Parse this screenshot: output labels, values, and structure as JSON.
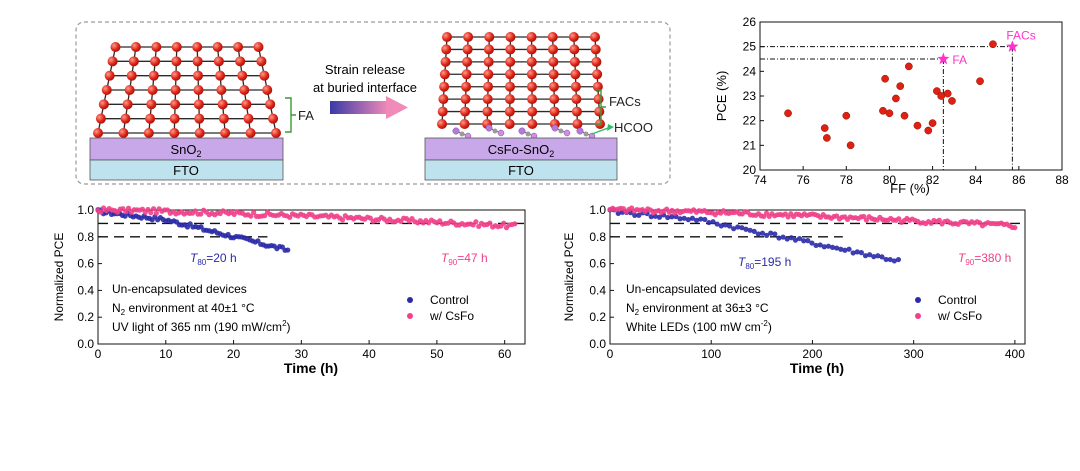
{
  "schematic": {
    "left": {
      "layer_label": "FA",
      "substrate_top_base": "SnO",
      "substrate_top_sub": "2",
      "substrate_bottom": "FTO"
    },
    "arrow_text_line1": "Strain release",
    "arrow_text_line2": "at buried interface",
    "right": {
      "layer_label": "FACs",
      "anion_label": "HCOO",
      "substrate_top_base": "CsFo-SnO",
      "substrate_top_sub": "2",
      "substrate_bottom": "FTO"
    }
  },
  "chart_data": [
    {
      "id": "scatter",
      "type": "scatter",
      "xlabel": "FF (%)",
      "ylabel": "PCE (%)",
      "xlim": [
        74,
        88
      ],
      "ylim": [
        20,
        26
      ],
      "xticks": [
        74,
        76,
        78,
        80,
        82,
        84,
        86,
        88
      ],
      "yticks": [
        20,
        21,
        22,
        23,
        24,
        25,
        26
      ],
      "points": [
        [
          75.3,
          22.3
        ],
        [
          77.0,
          21.7
        ],
        [
          77.1,
          21.3
        ],
        [
          78.0,
          22.2
        ],
        [
          78.2,
          21.0
        ],
        [
          79.7,
          22.4
        ],
        [
          79.8,
          23.7
        ],
        [
          80.0,
          22.3
        ],
        [
          80.3,
          22.9
        ],
        [
          80.5,
          23.4
        ],
        [
          80.7,
          22.2
        ],
        [
          80.9,
          24.2
        ],
        [
          81.3,
          21.8
        ],
        [
          81.8,
          21.6
        ],
        [
          82.0,
          21.9
        ],
        [
          82.2,
          23.2
        ],
        [
          82.4,
          23.0
        ],
        [
          82.7,
          23.1
        ],
        [
          82.9,
          22.8
        ],
        [
          84.2,
          23.6
        ],
        [
          84.8,
          25.1
        ]
      ],
      "stars": [
        {
          "label": "FA",
          "x": 82.5,
          "y": 24.5
        },
        {
          "label": "FACs",
          "x": 85.7,
          "y": 25.0
        }
      ],
      "colors": {
        "points": "#e02010",
        "stars": "#ff33cc"
      }
    },
    {
      "id": "stab_uv",
      "type": "scatter",
      "xlabel": "Time (h)",
      "ylabel": "Normalized PCE",
      "xlim": [
        0,
        63
      ],
      "ylim": [
        0.0,
        1.0
      ],
      "xticks": [
        0,
        10,
        20,
        30,
        40,
        50,
        60
      ],
      "yticks": [
        0.0,
        0.2,
        0.4,
        0.6,
        0.8,
        1.0
      ],
      "ytick_labels": [
        "0.0",
        "0.2",
        "0.4",
        "0.6",
        "0.8",
        "1.0"
      ],
      "ref_lines": [
        0.9,
        0.8
      ],
      "series": [
        {
          "name": "Control",
          "color": "#2a2aa8",
          "x_end": 28,
          "start": 0.99,
          "end": 0.7
        },
        {
          "name": "w/ CsFo",
          "color": "#f0408a",
          "x_end": 61.5,
          "start": 1.0,
          "end": 0.88
        }
      ],
      "annotations": [
        {
          "sym": "T",
          "sub": "80",
          "text": "=20 h",
          "color": "#2a2aa8"
        },
        {
          "sym": "T",
          "sub": "90",
          "text": "=47 h",
          "color": "#f0408a"
        }
      ],
      "info": [
        {
          "pre": "Un-encapsulated devices",
          "sub": "",
          "post": "",
          "sup": "",
          "tail": ""
        },
        {
          "pre": "N",
          "sub": "2",
          "post": " environment at 40±1 °C",
          "sup": "",
          "tail": ""
        },
        {
          "pre": "UV light of 365 nm (190 mW/cm",
          "sub": "",
          "post": "",
          "sup": "2",
          "tail": ")"
        }
      ]
    },
    {
      "id": "stab_led",
      "type": "scatter",
      "xlabel": "Time (h)",
      "ylabel": "Normalized PCE",
      "xlim": [
        0,
        410
      ],
      "ylim": [
        0.0,
        1.0
      ],
      "xticks": [
        0,
        100,
        200,
        300,
        400
      ],
      "yticks": [
        0.0,
        0.2,
        0.4,
        0.6,
        0.8,
        1.0
      ],
      "ytick_labels": [
        "0.0",
        "0.2",
        "0.4",
        "0.6",
        "0.8",
        "1.0"
      ],
      "ref_lines": [
        0.9,
        0.8
      ],
      "series": [
        {
          "name": "Control",
          "color": "#2a2aa8",
          "x_end": 285,
          "start": 0.99,
          "end": 0.62
        },
        {
          "name": "w/ CsFo",
          "color": "#f0408a",
          "x_end": 400,
          "start": 1.0,
          "end": 0.88
        }
      ],
      "annotations": [
        {
          "sym": "T",
          "sub": "80",
          "text": "=195 h",
          "color": "#2a2aa8"
        },
        {
          "sym": "T",
          "sub": "90",
          "text": "=380 h",
          "color": "#f0408a"
        }
      ],
      "info": [
        {
          "pre": "Un-encapsulated devices",
          "sub": "",
          "post": "",
          "sup": "",
          "tail": ""
        },
        {
          "pre": "N",
          "sub": "2",
          "post": " environment at 36±3 °C",
          "sup": "",
          "tail": ""
        },
        {
          "pre": "White LEDs (100 mW cm",
          "sub": "",
          "post": "",
          "sup": "-2",
          "tail": ")"
        }
      ]
    }
  ]
}
